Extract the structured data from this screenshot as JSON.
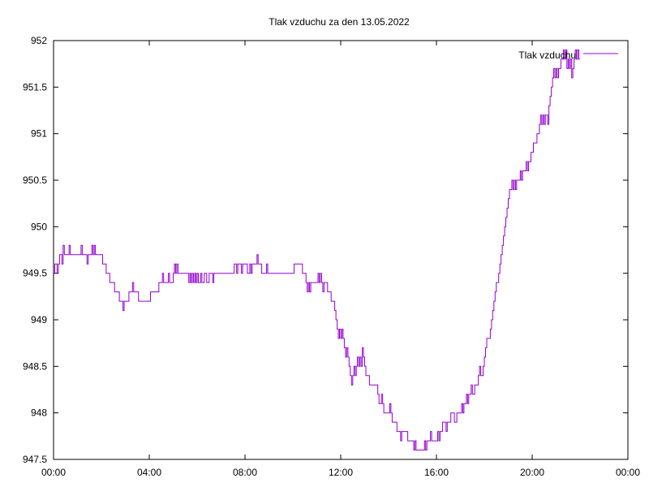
{
  "chart_data": {
    "type": "line",
    "title": "Tlak vzduchu za den 13.05.2022",
    "xlabel": "",
    "ylabel": "",
    "x_unit": "hours",
    "xlim": [
      0,
      24
    ],
    "ylim": [
      947.5,
      952
    ],
    "x_ticks": [
      {
        "value": 0,
        "label": "00:00"
      },
      {
        "value": 4,
        "label": "04:00"
      },
      {
        "value": 8,
        "label": "08:00"
      },
      {
        "value": 12,
        "label": "12:00"
      },
      {
        "value": 16,
        "label": "16:00"
      },
      {
        "value": 20,
        "label": "20:00"
      },
      {
        "value": 24,
        "label": "00:00"
      }
    ],
    "y_ticks": [
      {
        "value": 947.5,
        "label": "947.5"
      },
      {
        "value": 948,
        "label": "948"
      },
      {
        "value": 948.5,
        "label": "948.5"
      },
      {
        "value": 949,
        "label": "949"
      },
      {
        "value": 949.5,
        "label": "949.5"
      },
      {
        "value": 950,
        "label": "950"
      },
      {
        "value": 950.5,
        "label": "950.5"
      },
      {
        "value": 951,
        "label": "951"
      },
      {
        "value": 951.5,
        "label": "951.5"
      },
      {
        "value": 952,
        "label": "952"
      }
    ],
    "grid": false,
    "legend_position": "top-right",
    "series": [
      {
        "name": "Tlak vzduchu",
        "color": "#9400d3",
        "points": [
          [
            0.0,
            949.5
          ],
          [
            0.05,
            949.6
          ],
          [
            0.15,
            949.5
          ],
          [
            0.2,
            949.6
          ],
          [
            0.25,
            949.7
          ],
          [
            0.35,
            949.6
          ],
          [
            0.4,
            949.8
          ],
          [
            0.45,
            949.7
          ],
          [
            0.6,
            949.7
          ],
          [
            0.65,
            949.8
          ],
          [
            0.7,
            949.7
          ],
          [
            1.1,
            949.7
          ],
          [
            1.15,
            949.8
          ],
          [
            1.2,
            949.7
          ],
          [
            1.35,
            949.7
          ],
          [
            1.4,
            949.6
          ],
          [
            1.45,
            949.7
          ],
          [
            1.55,
            949.7
          ],
          [
            1.6,
            949.8
          ],
          [
            1.65,
            949.7
          ],
          [
            1.7,
            949.8
          ],
          [
            1.75,
            949.7
          ],
          [
            2.0,
            949.7
          ],
          [
            2.05,
            949.6
          ],
          [
            2.15,
            949.6
          ],
          [
            2.2,
            949.5
          ],
          [
            2.3,
            949.5
          ],
          [
            2.35,
            949.4
          ],
          [
            2.5,
            949.4
          ],
          [
            2.55,
            949.3
          ],
          [
            2.65,
            949.3
          ],
          [
            2.75,
            949.2
          ],
          [
            2.8,
            949.2
          ],
          [
            2.9,
            949.1
          ],
          [
            2.95,
            949.2
          ],
          [
            3.05,
            949.2
          ],
          [
            3.15,
            949.3
          ],
          [
            3.25,
            949.3
          ],
          [
            3.3,
            949.4
          ],
          [
            3.35,
            949.3
          ],
          [
            3.45,
            949.3
          ],
          [
            3.55,
            949.2
          ],
          [
            3.95,
            949.2
          ],
          [
            4.05,
            949.3
          ],
          [
            4.3,
            949.3
          ],
          [
            4.4,
            949.4
          ],
          [
            4.5,
            949.4
          ],
          [
            4.55,
            949.5
          ],
          [
            4.6,
            949.4
          ],
          [
            4.75,
            949.4
          ],
          [
            4.8,
            949.5
          ],
          [
            4.85,
            949.4
          ],
          [
            4.95,
            949.4
          ],
          [
            5.0,
            949.5
          ],
          [
            5.05,
            949.6
          ],
          [
            5.1,
            949.5
          ],
          [
            5.15,
            949.6
          ],
          [
            5.2,
            949.5
          ],
          [
            5.6,
            949.5
          ],
          [
            5.65,
            949.4
          ],
          [
            5.7,
            949.5
          ],
          [
            5.75,
            949.4
          ],
          [
            5.8,
            949.5
          ],
          [
            5.85,
            949.4
          ],
          [
            5.9,
            949.5
          ],
          [
            5.95,
            949.4
          ],
          [
            6.0,
            949.5
          ],
          [
            6.05,
            949.4
          ],
          [
            6.15,
            949.5
          ],
          [
            6.2,
            949.4
          ],
          [
            6.3,
            949.5
          ],
          [
            6.4,
            949.4
          ],
          [
            6.5,
            949.5
          ],
          [
            6.6,
            949.5
          ],
          [
            6.65,
            949.4
          ],
          [
            6.7,
            949.5
          ],
          [
            7.5,
            949.5
          ],
          [
            7.55,
            949.6
          ],
          [
            7.65,
            949.5
          ],
          [
            7.7,
            949.6
          ],
          [
            7.8,
            949.6
          ],
          [
            7.85,
            949.5
          ],
          [
            7.9,
            949.6
          ],
          [
            8.05,
            949.6
          ],
          [
            8.1,
            949.5
          ],
          [
            8.2,
            949.6
          ],
          [
            8.25,
            949.5
          ],
          [
            8.3,
            949.6
          ],
          [
            8.4,
            949.6
          ],
          [
            8.5,
            949.7
          ],
          [
            8.55,
            949.6
          ],
          [
            8.65,
            949.6
          ],
          [
            8.7,
            949.5
          ],
          [
            8.8,
            949.5
          ],
          [
            8.9,
            949.6
          ],
          [
            8.95,
            949.5
          ],
          [
            9.0,
            949.5
          ],
          [
            9.1,
            949.5
          ],
          [
            10.05,
            949.6
          ],
          [
            10.15,
            949.6
          ],
          [
            10.35,
            949.6
          ],
          [
            10.4,
            949.5
          ],
          [
            10.45,
            949.5
          ],
          [
            10.55,
            949.4
          ],
          [
            10.6,
            949.3
          ],
          [
            10.65,
            949.4
          ],
          [
            10.7,
            949.3
          ],
          [
            10.75,
            949.4
          ],
          [
            10.9,
            949.4
          ],
          [
            11.0,
            949.4
          ],
          [
            11.05,
            949.5
          ],
          [
            11.1,
            949.4
          ],
          [
            11.15,
            949.5
          ],
          [
            11.2,
            949.4
          ],
          [
            11.25,
            949.3
          ],
          [
            11.3,
            949.4
          ],
          [
            11.4,
            949.4
          ],
          [
            11.45,
            949.3
          ],
          [
            11.55,
            949.3
          ],
          [
            11.6,
            949.2
          ],
          [
            11.7,
            949.2
          ],
          [
            11.75,
            949.1
          ],
          [
            11.8,
            949.0
          ],
          [
            11.85,
            948.9
          ],
          [
            11.9,
            948.8
          ],
          [
            11.95,
            948.9
          ],
          [
            12.0,
            948.8
          ],
          [
            12.05,
            948.9
          ],
          [
            12.1,
            948.8
          ],
          [
            12.15,
            948.7
          ],
          [
            12.2,
            948.6
          ],
          [
            12.25,
            948.7
          ],
          [
            12.3,
            948.6
          ],
          [
            12.35,
            948.5
          ],
          [
            12.4,
            948.4
          ],
          [
            12.45,
            948.3
          ],
          [
            12.5,
            948.4
          ],
          [
            12.55,
            948.5
          ],
          [
            12.6,
            948.4
          ],
          [
            12.65,
            948.5
          ],
          [
            12.7,
            948.6
          ],
          [
            12.75,
            948.5
          ],
          [
            12.8,
            948.6
          ],
          [
            12.85,
            948.5
          ],
          [
            12.9,
            948.7
          ],
          [
            12.95,
            948.6
          ],
          [
            13.0,
            948.5
          ],
          [
            13.05,
            948.4
          ],
          [
            13.15,
            948.4
          ],
          [
            13.2,
            948.3
          ],
          [
            13.5,
            948.3
          ],
          [
            13.55,
            948.2
          ],
          [
            13.6,
            948.1
          ],
          [
            13.7,
            948.2
          ],
          [
            13.75,
            948.1
          ],
          [
            13.8,
            948.0
          ],
          [
            14.0,
            948.0
          ],
          [
            14.05,
            948.1
          ],
          [
            14.1,
            948.0
          ],
          [
            14.15,
            947.9
          ],
          [
            14.3,
            947.9
          ],
          [
            14.35,
            947.8
          ],
          [
            14.45,
            947.8
          ],
          [
            14.5,
            947.7
          ],
          [
            14.55,
            947.8
          ],
          [
            14.6,
            947.8
          ],
          [
            14.7,
            947.8
          ],
          [
            14.8,
            947.7
          ],
          [
            15.0,
            947.7
          ],
          [
            15.05,
            947.6
          ],
          [
            15.1,
            947.7
          ],
          [
            15.15,
            947.6
          ],
          [
            15.45,
            947.6
          ],
          [
            15.5,
            947.7
          ],
          [
            15.55,
            947.6
          ],
          [
            15.6,
            947.7
          ],
          [
            15.7,
            947.7
          ],
          [
            15.75,
            947.8
          ],
          [
            15.8,
            947.7
          ],
          [
            15.9,
            947.7
          ],
          [
            16.0,
            947.7
          ],
          [
            16.05,
            947.8
          ],
          [
            16.1,
            947.7
          ],
          [
            16.15,
            947.8
          ],
          [
            16.2,
            947.8
          ],
          [
            16.25,
            947.9
          ],
          [
            16.35,
            947.9
          ],
          [
            16.4,
            947.8
          ],
          [
            16.45,
            947.9
          ],
          [
            16.55,
            947.9
          ],
          [
            16.6,
            948.0
          ],
          [
            16.7,
            948.0
          ],
          [
            16.75,
            947.9
          ],
          [
            16.85,
            948.0
          ],
          [
            17.0,
            948.0
          ],
          [
            17.05,
            948.1
          ],
          [
            17.1,
            948.0
          ],
          [
            17.15,
            948.1
          ],
          [
            17.25,
            948.2
          ],
          [
            17.3,
            948.1
          ],
          [
            17.35,
            948.2
          ],
          [
            17.45,
            948.3
          ],
          [
            17.5,
            948.2
          ],
          [
            17.6,
            948.3
          ],
          [
            17.7,
            948.3
          ],
          [
            17.75,
            948.4
          ],
          [
            17.8,
            948.5
          ],
          [
            17.85,
            948.4
          ],
          [
            17.95,
            948.5
          ],
          [
            18.0,
            948.6
          ],
          [
            18.05,
            948.7
          ],
          [
            18.1,
            948.8
          ],
          [
            18.2,
            948.8
          ],
          [
            18.25,
            948.9
          ],
          [
            18.3,
            949.0
          ],
          [
            18.35,
            949.1
          ],
          [
            18.4,
            949.2
          ],
          [
            18.45,
            949.3
          ],
          [
            18.5,
            949.4
          ],
          [
            18.55,
            949.4
          ],
          [
            18.6,
            949.5
          ],
          [
            18.65,
            949.6
          ],
          [
            18.7,
            949.7
          ],
          [
            18.75,
            949.8
          ],
          [
            18.8,
            949.9
          ],
          [
            18.85,
            950.0
          ],
          [
            18.9,
            950.1
          ],
          [
            18.95,
            950.2
          ],
          [
            19.0,
            950.3
          ],
          [
            19.05,
            950.4
          ],
          [
            19.1,
            950.4
          ],
          [
            19.15,
            950.5
          ],
          [
            19.2,
            950.4
          ],
          [
            19.25,
            950.5
          ],
          [
            19.3,
            950.4
          ],
          [
            19.35,
            950.5
          ],
          [
            19.45,
            950.5
          ],
          [
            19.5,
            950.6
          ],
          [
            19.55,
            950.5
          ],
          [
            19.6,
            950.6
          ],
          [
            19.7,
            950.6
          ],
          [
            19.75,
            950.7
          ],
          [
            19.8,
            950.6
          ],
          [
            19.85,
            950.7
          ],
          [
            19.9,
            950.7
          ],
          [
            19.95,
            950.8
          ],
          [
            20.0,
            950.8
          ],
          [
            20.05,
            950.9
          ],
          [
            20.15,
            950.9
          ],
          [
            20.2,
            951.0
          ],
          [
            20.3,
            951.1
          ],
          [
            20.35,
            951.2
          ],
          [
            20.4,
            951.1
          ],
          [
            20.45,
            951.2
          ],
          [
            20.5,
            951.1
          ],
          [
            20.55,
            951.2
          ],
          [
            20.6,
            951.2
          ],
          [
            20.65,
            951.1
          ],
          [
            20.7,
            951.3
          ],
          [
            20.75,
            951.4
          ],
          [
            20.8,
            951.5
          ],
          [
            20.85,
            951.6
          ],
          [
            20.9,
            951.7
          ],
          [
            20.95,
            951.6
          ],
          [
            21.0,
            951.7
          ],
          [
            21.05,
            951.6
          ],
          [
            21.1,
            951.7
          ],
          [
            21.15,
            951.7
          ],
          [
            21.2,
            951.8
          ],
          [
            21.25,
            951.8
          ],
          [
            21.3,
            951.9
          ],
          [
            21.35,
            951.8
          ],
          [
            21.4,
            951.9
          ],
          [
            21.45,
            951.7
          ],
          [
            21.5,
            951.8
          ],
          [
            21.55,
            951.7
          ],
          [
            21.6,
            951.8
          ],
          [
            21.65,
            951.6
          ],
          [
            21.7,
            951.7
          ],
          [
            21.75,
            951.8
          ],
          [
            21.8,
            951.9
          ],
          [
            21.85,
            951.8
          ],
          [
            21.9,
            951.9
          ],
          [
            21.95,
            951.8
          ],
          [
            22.0,
            951.8
          ]
        ]
      }
    ]
  }
}
